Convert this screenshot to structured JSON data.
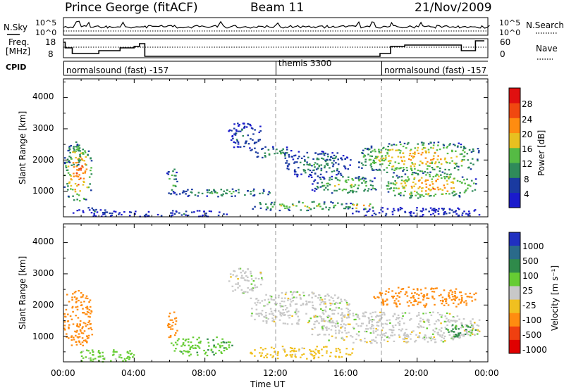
{
  "header": {
    "station": "Prince George (fitACF)",
    "beam": "Beam 11",
    "date": "21/Nov/2009"
  },
  "noise_panel": {
    "left_label": "N.Sky",
    "right_label": "N.Search",
    "left_ticks": [
      "10^5",
      "10^0"
    ],
    "right_ticks": [
      "10^5",
      "10^0"
    ]
  },
  "freq_panel": {
    "left_label_1": "Freq.",
    "left_label_2": "[MHz]",
    "right_label": "Nave",
    "left_ticks": [
      "18",
      "8"
    ],
    "right_ticks": [
      "60",
      "0"
    ]
  },
  "cpid": {
    "label": "CPID",
    "segments": [
      {
        "name": "normalsound (fast) -157",
        "start_hour": 0
      },
      {
        "name": "themis 3300",
        "start_hour": 12
      },
      {
        "name": "normalsound (fast) -157",
        "start_hour": 18
      }
    ]
  },
  "time_axis": {
    "ticks": [
      "00:00",
      "04:00",
      "08:00",
      "12:00",
      "16:00",
      "20:00",
      "00:00"
    ],
    "label": "Time UT"
  },
  "range_axis": {
    "label": "Slant Range [km]",
    "ticks": [
      "1000",
      "2000",
      "3000",
      "4000"
    ]
  },
  "power_scale": {
    "label": "Power [dB]",
    "ticks": [
      "4",
      "8",
      "12",
      "16",
      "20",
      "24",
      "28"
    ],
    "colors": [
      "#1a1acc",
      "#1a3aa0",
      "#2f8a5a",
      "#55bb44",
      "#e8c020",
      "#ff8c10",
      "#f04810",
      "#e01010"
    ]
  },
  "velocity_scale": {
    "label": "Velocity [m s⁻¹]",
    "ticks": [
      "1000",
      "500",
      "100",
      "25",
      "-25",
      "-100",
      "-500",
      "-1000"
    ],
    "colors": [
      "#2030c0",
      "#2a6a8a",
      "#2f8a4a",
      "#66cc33",
      "#c8c8c8",
      "#f0c020",
      "#ff8c10",
      "#f04010",
      "#e00000"
    ]
  },
  "chart_data": [
    {
      "type": "heatmap",
      "title": "Power",
      "xlabel": "",
      "ylabel": "Slant Range [km]",
      "xlim": [
        0,
        24
      ],
      "ylim": [
        180,
        4600
      ],
      "colorbar_label": "Power [dB]",
      "colorbar_range": [
        0,
        30
      ],
      "echo_regions": [
        {
          "t": [
            0.0,
            1.6
          ],
          "r": [
            700,
            2500
          ],
          "power_db": 24
        },
        {
          "t": [
            0.2,
            1.0
          ],
          "r": [
            1800,
            2600
          ],
          "power_db": 16
        },
        {
          "t": [
            0.5,
            3.0
          ],
          "r": [
            200,
            500
          ],
          "power_db": 6
        },
        {
          "t": [
            3.0,
            9.5
          ],
          "r": [
            200,
            400
          ],
          "power_db": 6
        },
        {
          "t": [
            5.8,
            6.4
          ],
          "r": [
            900,
            1800
          ],
          "power_db": 16
        },
        {
          "t": [
            6.0,
            12.0
          ],
          "r": [
            850,
            1100
          ],
          "power_db": 12
        },
        {
          "t": [
            9.3,
            11.2
          ],
          "r": [
            2400,
            3200
          ],
          "power_db": 8
        },
        {
          "t": [
            10.5,
            13.0
          ],
          "r": [
            2050,
            2450
          ],
          "power_db": 12
        },
        {
          "t": [
            12.5,
            16.2
          ],
          "r": [
            1450,
            2300
          ],
          "power_db": 10
        },
        {
          "t": [
            10.5,
            16.5
          ],
          "r": [
            400,
            700
          ],
          "power_db": 16
        },
        {
          "t": [
            14.0,
            18.0
          ],
          "r": [
            950,
            1500
          ],
          "power_db": 16
        },
        {
          "t": [
            16.0,
            17.6
          ],
          "r": [
            450,
            650
          ],
          "power_db": 24
        },
        {
          "t": [
            16.5,
            23.5
          ],
          "r": [
            1600,
            2600
          ],
          "power_db": 20
        },
        {
          "t": [
            18.0,
            23.3
          ],
          "r": [
            800,
            1600
          ],
          "power_db": 22
        },
        {
          "t": [
            16.3,
            23.5
          ],
          "r": [
            200,
            500
          ],
          "power_db": 5
        }
      ]
    },
    {
      "type": "heatmap",
      "title": "Velocity",
      "xlabel": "Time UT",
      "ylabel": "Slant Range [km]",
      "xlim": [
        0,
        24
      ],
      "ylim": [
        180,
        4600
      ],
      "colorbar_label": "Velocity [m s⁻¹]",
      "colorbar_range": [
        -1000,
        1000
      ],
      "echo_regions": [
        {
          "t": [
            0.0,
            1.6
          ],
          "r": [
            700,
            2500
          ],
          "velocity": -300
        },
        {
          "t": [
            0.5,
            4.0
          ],
          "r": [
            200,
            600
          ],
          "velocity": 50
        },
        {
          "t": [
            5.8,
            6.4
          ],
          "r": [
            900,
            1800
          ],
          "velocity": -300
        },
        {
          "t": [
            6.0,
            9.5
          ],
          "r": [
            400,
            1000
          ],
          "velocity": 80
        },
        {
          "t": [
            9.3,
            11.2
          ],
          "r": [
            2400,
            3200
          ],
          "velocity": 0
        },
        {
          "t": [
            10.5,
            16.2
          ],
          "r": [
            1400,
            2450
          ],
          "velocity": 0
        },
        {
          "t": [
            10.5,
            16.5
          ],
          "r": [
            300,
            700
          ],
          "velocity": -50
        },
        {
          "t": [
            14.0,
            23.5
          ],
          "r": [
            800,
            1800
          ],
          "velocity": 0
        },
        {
          "t": [
            17.5,
            23.3
          ],
          "r": [
            1950,
            2600
          ],
          "velocity": -300
        },
        {
          "t": [
            21.5,
            23.3
          ],
          "r": [
            1000,
            1400
          ],
          "velocity": 120
        }
      ]
    }
  ]
}
